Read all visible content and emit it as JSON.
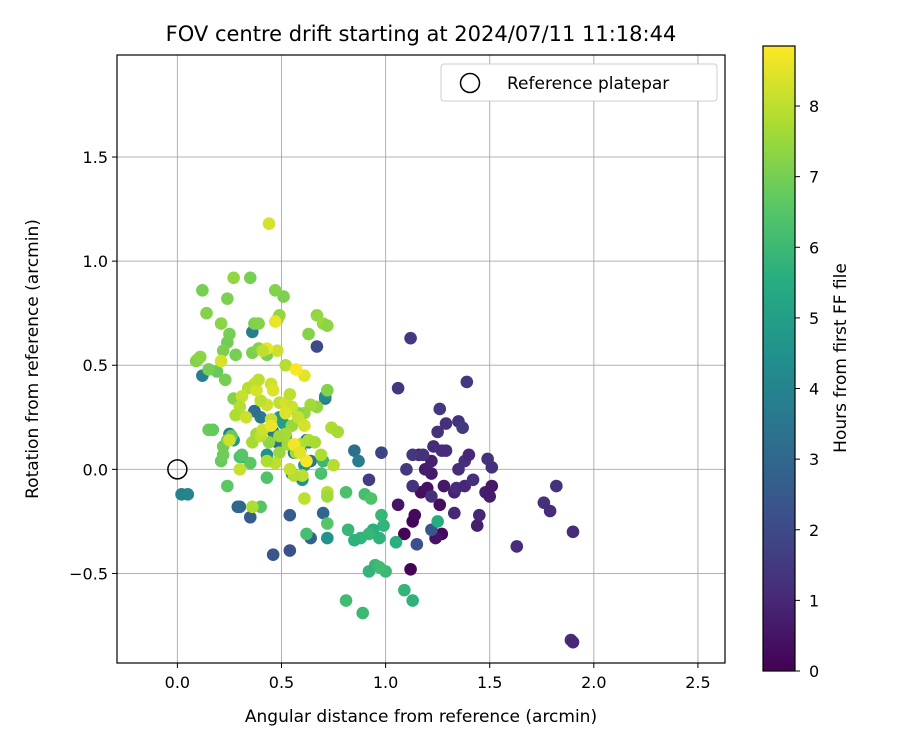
{
  "chart_data": {
    "type": "scatter",
    "title": "FOV centre drift starting at 2024/07/11 11:18:44",
    "xlabel": "Angular distance from reference (arcmin)",
    "ylabel": "Rotation from reference (arcmin)",
    "xlim": [
      -0.29,
      2.63
    ],
    "ylim": [
      -0.93,
      1.99
    ],
    "xticks": [
      "0.0",
      "0.5",
      "1.0",
      "1.5",
      "2.0",
      "2.5"
    ],
    "xtick_values": [
      0,
      0.5,
      1,
      1.5,
      2,
      2.5
    ],
    "yticks": [
      "−0.5",
      "0.0",
      "0.5",
      "1.0",
      "1.5"
    ],
    "ytick_values": [
      -0.5,
      0,
      0.5,
      1,
      1.5
    ],
    "grid": true,
    "legend_position": "top-right",
    "legend_label": "Reference platepar",
    "reference_point": {
      "x": 0.0,
      "y": 0.0
    },
    "colorbar": {
      "label": "Hours from first FF file",
      "range": [
        0,
        8.85
      ],
      "ticks": [
        "0",
        "1",
        "2",
        "3",
        "4",
        "5",
        "6",
        "7",
        "8"
      ],
      "tick_values": [
        0,
        1,
        2,
        3,
        4,
        5,
        6,
        7,
        8
      ],
      "colormap": "viridis"
    },
    "points": [
      {
        "x": 1.12,
        "y": -0.48,
        "h": 0.1
      },
      {
        "x": 1.09,
        "y": -0.31,
        "h": 0.1
      },
      {
        "x": 1.13,
        "y": -0.25,
        "h": 0.1
      },
      {
        "x": 1.14,
        "y": -0.22,
        "h": 0.2
      },
      {
        "x": 1.27,
        "y": -0.31,
        "h": 0.2
      },
      {
        "x": 1.26,
        "y": -0.17,
        "h": 0.3
      },
      {
        "x": 1.17,
        "y": -0.11,
        "h": 0.3
      },
      {
        "x": 1.2,
        "y": -0.09,
        "h": 0.4
      },
      {
        "x": 1.24,
        "y": -0.33,
        "h": 0.5
      },
      {
        "x": 1.06,
        "y": -0.17,
        "h": 0.5
      },
      {
        "x": 1.22,
        "y": -0.02,
        "h": 0.6
      },
      {
        "x": 1.28,
        "y": -0.08,
        "h": 0.6
      },
      {
        "x": 1.19,
        "y": 0.0,
        "h": 0.7
      },
      {
        "x": 1.22,
        "y": 0.04,
        "h": 0.8
      },
      {
        "x": 1.16,
        "y": 0.07,
        "h": 0.9
      },
      {
        "x": 1.33,
        "y": -0.11,
        "h": 0.9
      },
      {
        "x": 1.44,
        "y": -0.27,
        "h": 0.8
      },
      {
        "x": 1.48,
        "y": -0.11,
        "h": 0.7
      },
      {
        "x": 1.51,
        "y": -0.08,
        "h": 0.6
      },
      {
        "x": 1.5,
        "y": -0.13,
        "h": 0.7
      },
      {
        "x": 1.45,
        "y": -0.22,
        "h": 1.0
      },
      {
        "x": 1.33,
        "y": -0.21,
        "h": 1.0
      },
      {
        "x": 1.34,
        "y": -0.09,
        "h": 1.1
      },
      {
        "x": 1.38,
        "y": -0.08,
        "h": 1.0
      },
      {
        "x": 1.35,
        "y": 0.0,
        "h": 1.1
      },
      {
        "x": 1.38,
        "y": 0.04,
        "h": 1.2
      },
      {
        "x": 1.4,
        "y": 0.07,
        "h": 1.0
      },
      {
        "x": 1.42,
        "y": -0.05,
        "h": 1.2
      },
      {
        "x": 1.27,
        "y": 0.09,
        "h": 1.2
      },
      {
        "x": 1.29,
        "y": 0.09,
        "h": 1.1
      },
      {
        "x": 1.25,
        "y": 0.18,
        "h": 1.3
      },
      {
        "x": 1.23,
        "y": 0.11,
        "h": 1.1
      },
      {
        "x": 1.18,
        "y": 0.07,
        "h": 1.3
      },
      {
        "x": 1.13,
        "y": 0.07,
        "h": 1.4
      },
      {
        "x": 1.1,
        "y": 0.0,
        "h": 1.5
      },
      {
        "x": 1.13,
        "y": -0.08,
        "h": 1.3
      },
      {
        "x": 1.22,
        "y": -0.13,
        "h": 1.2
      },
      {
        "x": 1.26,
        "y": 0.29,
        "h": 1.4
      },
      {
        "x": 1.29,
        "y": 0.22,
        "h": 1.2
      },
      {
        "x": 1.35,
        "y": 0.23,
        "h": 1.3
      },
      {
        "x": 1.37,
        "y": 0.2,
        "h": 1.5
      },
      {
        "x": 1.39,
        "y": 0.42,
        "h": 1.4
      },
      {
        "x": 1.49,
        "y": 0.05,
        "h": 1.3
      },
      {
        "x": 1.51,
        "y": 0.01,
        "h": 1.2
      },
      {
        "x": 1.63,
        "y": -0.37,
        "h": 1.1
      },
      {
        "x": 1.76,
        "y": -0.16,
        "h": 1.2
      },
      {
        "x": 1.79,
        "y": -0.2,
        "h": 1.1
      },
      {
        "x": 1.82,
        "y": -0.08,
        "h": 1.3
      },
      {
        "x": 1.9,
        "y": -0.3,
        "h": 1.1
      },
      {
        "x": 1.89,
        "y": -0.82,
        "h": 1.2
      },
      {
        "x": 1.9,
        "y": -0.83,
        "h": 1.0
      },
      {
        "x": 1.06,
        "y": 0.39,
        "h": 1.4
      },
      {
        "x": 1.12,
        "y": 0.63,
        "h": 1.5
      },
      {
        "x": 0.98,
        "y": 0.08,
        "h": 1.8
      },
      {
        "x": 0.92,
        "y": -0.05,
        "h": 1.6
      },
      {
        "x": 1.15,
        "y": -0.36,
        "h": 2.2
      },
      {
        "x": 1.22,
        "y": -0.29,
        "h": 2.4
      },
      {
        "x": 0.67,
        "y": 0.59,
        "h": 2.0
      },
      {
        "x": 0.54,
        "y": -0.39,
        "h": 2.2
      },
      {
        "x": 0.46,
        "y": -0.41,
        "h": 2.4
      },
      {
        "x": 0.54,
        "y": -0.22,
        "h": 2.6
      },
      {
        "x": 0.35,
        "y": -0.23,
        "h": 2.6
      },
      {
        "x": 0.29,
        "y": -0.18,
        "h": 2.8
      },
      {
        "x": 0.3,
        "y": -0.18,
        "h": 3.0
      },
      {
        "x": 0.64,
        "y": -0.33,
        "h": 2.8
      },
      {
        "x": 0.7,
        "y": -0.21,
        "h": 2.9
      },
      {
        "x": 0.71,
        "y": 0.34,
        "h": 3.5
      },
      {
        "x": 0.64,
        "y": 0.04,
        "h": 3.5
      },
      {
        "x": 0.62,
        "y": 0.14,
        "h": 3.3
      },
      {
        "x": 0.59,
        "y": 0.09,
        "h": 3.2
      },
      {
        "x": 0.56,
        "y": 0.08,
        "h": 3.4
      },
      {
        "x": 0.52,
        "y": 0.16,
        "h": 3.1
      },
      {
        "x": 0.48,
        "y": 0.13,
        "h": 3.3
      },
      {
        "x": 0.46,
        "y": 0.18,
        "h": 3.6
      },
      {
        "x": 0.4,
        "y": 0.25,
        "h": 3.5
      },
      {
        "x": 0.37,
        "y": 0.28,
        "h": 3.2
      },
      {
        "x": 0.55,
        "y": -0.02,
        "h": 3.6
      },
      {
        "x": 0.63,
        "y": 0.13,
        "h": 3.8
      },
      {
        "x": 0.36,
        "y": 0.66,
        "h": 3.8
      },
      {
        "x": 0.25,
        "y": 0.17,
        "h": 3.9
      },
      {
        "x": 0.12,
        "y": 0.45,
        "h": 3.8
      },
      {
        "x": 0.02,
        "y": -0.12,
        "h": 3.9
      },
      {
        "x": 0.05,
        "y": -0.12,
        "h": 4.0
      },
      {
        "x": 0.85,
        "y": 0.09,
        "h": 3.3
      },
      {
        "x": 0.87,
        "y": 0.04,
        "h": 3.7
      },
      {
        "x": 0.72,
        "y": -0.33,
        "h": 4.5
      },
      {
        "x": 0.71,
        "y": 0.35,
        "h": 4.2
      },
      {
        "x": 0.43,
        "y": 0.07,
        "h": 4.4
      },
      {
        "x": 0.6,
        "y": -0.05,
        "h": 4.6
      },
      {
        "x": 0.61,
        "y": 0.02,
        "h": 4.5
      },
      {
        "x": 0.31,
        "y": 0.06,
        "h": 4.8
      },
      {
        "x": 0.27,
        "y": 0.14,
        "h": 4.6
      },
      {
        "x": 0.49,
        "y": 0.25,
        "h": 4.8
      },
      {
        "x": 0.51,
        "y": 0.22,
        "h": 5.0
      },
      {
        "x": 1.25,
        "y": -0.25,
        "h": 5.5
      },
      {
        "x": 1.13,
        "y": -0.63,
        "h": 5.7
      },
      {
        "x": 1.09,
        "y": -0.58,
        "h": 5.8
      },
      {
        "x": 1.05,
        "y": -0.35,
        "h": 5.6
      },
      {
        "x": 0.98,
        "y": -0.22,
        "h": 5.9
      },
      {
        "x": 0.99,
        "y": -0.27,
        "h": 5.8
      },
      {
        "x": 0.97,
        "y": -0.33,
        "h": 5.7
      },
      {
        "x": 0.94,
        "y": -0.29,
        "h": 5.6
      },
      {
        "x": 0.92,
        "y": -0.31,
        "h": 5.9
      },
      {
        "x": 0.88,
        "y": -0.33,
        "h": 5.8
      },
      {
        "x": 0.85,
        "y": -0.34,
        "h": 5.7
      },
      {
        "x": 0.82,
        "y": -0.29,
        "h": 5.9
      },
      {
        "x": 0.95,
        "y": -0.46,
        "h": 5.9
      },
      {
        "x": 1.0,
        "y": -0.49,
        "h": 6.0
      },
      {
        "x": 0.97,
        "y": -0.47,
        "h": 6.1
      },
      {
        "x": 0.92,
        "y": -0.49,
        "h": 5.8
      },
      {
        "x": 0.89,
        "y": -0.69,
        "h": 6.0
      },
      {
        "x": 0.81,
        "y": -0.63,
        "h": 6.1
      },
      {
        "x": 0.81,
        "y": -0.11,
        "h": 6.3
      },
      {
        "x": 0.9,
        "y": -0.12,
        "h": 6.2
      },
      {
        "x": 0.93,
        "y": -0.14,
        "h": 6.4
      },
      {
        "x": 0.72,
        "y": -0.26,
        "h": 6.5
      },
      {
        "x": 0.69,
        "y": -0.02,
        "h": 6.3
      },
      {
        "x": 0.7,
        "y": 0.04,
        "h": 6.0
      },
      {
        "x": 0.62,
        "y": -0.31,
        "h": 6.2
      },
      {
        "x": 0.43,
        "y": -0.04,
        "h": 6.4
      },
      {
        "x": 0.4,
        "y": -0.18,
        "h": 6.5
      },
      {
        "x": 0.35,
        "y": 0.03,
        "h": 6.6
      },
      {
        "x": 0.3,
        "y": 0.06,
        "h": 6.3
      },
      {
        "x": 0.31,
        "y": 0.07,
        "h": 6.5
      },
      {
        "x": 0.24,
        "y": -0.08,
        "h": 6.6
      },
      {
        "x": 0.21,
        "y": 0.04,
        "h": 6.8
      },
      {
        "x": 0.22,
        "y": 0.07,
        "h": 6.9
      },
      {
        "x": 0.17,
        "y": 0.19,
        "h": 6.7
      },
      {
        "x": 0.15,
        "y": 0.19,
        "h": 6.8
      },
      {
        "x": 0.22,
        "y": 0.11,
        "h": 6.9
      },
      {
        "x": 0.24,
        "y": 0.14,
        "h": 7.0
      },
      {
        "x": 0.26,
        "y": 0.16,
        "h": 6.8
      },
      {
        "x": 0.19,
        "y": 0.47,
        "h": 6.8
      },
      {
        "x": 0.23,
        "y": 0.43,
        "h": 7.0
      },
      {
        "x": 0.27,
        "y": 0.34,
        "h": 7.2
      },
      {
        "x": 0.28,
        "y": 0.55,
        "h": 7.0
      },
      {
        "x": 0.24,
        "y": 0.61,
        "h": 6.9
      },
      {
        "x": 0.22,
        "y": 0.57,
        "h": 7.1
      },
      {
        "x": 0.25,
        "y": 0.65,
        "h": 7.0
      },
      {
        "x": 0.36,
        "y": 0.56,
        "h": 7.1
      },
      {
        "x": 0.39,
        "y": 0.58,
        "h": 7.2
      },
      {
        "x": 0.43,
        "y": 0.55,
        "h": 7.0
      },
      {
        "x": 0.37,
        "y": 0.7,
        "h": 7.1
      },
      {
        "x": 0.39,
        "y": 0.7,
        "h": 7.2
      },
      {
        "x": 0.48,
        "y": 0.72,
        "h": 7.3
      },
      {
        "x": 0.49,
        "y": 0.74,
        "h": 7.4
      },
      {
        "x": 0.51,
        "y": 0.83,
        "h": 7.1
      },
      {
        "x": 0.47,
        "y": 0.86,
        "h": 7.2
      },
      {
        "x": 0.35,
        "y": 0.92,
        "h": 7.0
      },
      {
        "x": 0.27,
        "y": 0.92,
        "h": 7.4
      },
      {
        "x": 0.24,
        "y": 0.82,
        "h": 7.1
      },
      {
        "x": 0.21,
        "y": 0.7,
        "h": 7.3
      },
      {
        "x": 0.14,
        "y": 0.75,
        "h": 7.2
      },
      {
        "x": 0.12,
        "y": 0.86,
        "h": 7.0
      },
      {
        "x": 0.1,
        "y": 0.53,
        "h": 7.1
      },
      {
        "x": 0.09,
        "y": 0.52,
        "h": 7.2
      },
      {
        "x": 0.11,
        "y": 0.54,
        "h": 7.3
      },
      {
        "x": 0.15,
        "y": 0.48,
        "h": 7.0
      },
      {
        "x": 0.63,
        "y": 0.65,
        "h": 7.2
      },
      {
        "x": 0.67,
        "y": 0.74,
        "h": 7.4
      },
      {
        "x": 0.7,
        "y": 0.7,
        "h": 7.5
      },
      {
        "x": 0.72,
        "y": 0.69,
        "h": 7.3
      },
      {
        "x": 0.72,
        "y": 0.38,
        "h": 7.2
      },
      {
        "x": 0.67,
        "y": 0.3,
        "h": 7.4
      },
      {
        "x": 0.64,
        "y": 0.31,
        "h": 7.6
      },
      {
        "x": 0.61,
        "y": 0.27,
        "h": 7.5
      },
      {
        "x": 0.58,
        "y": 0.27,
        "h": 7.3
      },
      {
        "x": 0.55,
        "y": 0.21,
        "h": 7.5
      },
      {
        "x": 0.52,
        "y": 0.17,
        "h": 7.7
      },
      {
        "x": 0.49,
        "y": 0.16,
        "h": 7.6
      },
      {
        "x": 0.44,
        "y": 0.13,
        "h": 7.4
      },
      {
        "x": 0.38,
        "y": 0.17,
        "h": 7.6
      },
      {
        "x": 0.36,
        "y": 0.13,
        "h": 7.7
      },
      {
        "x": 0.36,
        "y": -0.18,
        "h": 7.8
      },
      {
        "x": 0.49,
        "y": 0.08,
        "h": 7.5
      },
      {
        "x": 0.53,
        "y": 0.12,
        "h": 7.6
      },
      {
        "x": 0.57,
        "y": 0.08,
        "h": 7.7
      },
      {
        "x": 0.59,
        "y": 0.12,
        "h": 7.9
      },
      {
        "x": 0.63,
        "y": 0.14,
        "h": 7.8
      },
      {
        "x": 0.66,
        "y": 0.13,
        "h": 7.7
      },
      {
        "x": 0.69,
        "y": 0.07,
        "h": 7.8
      },
      {
        "x": 0.72,
        "y": -0.11,
        "h": 7.9
      },
      {
        "x": 0.72,
        "y": -0.13,
        "h": 7.6
      },
      {
        "x": 0.74,
        "y": 0.2,
        "h": 7.8
      },
      {
        "x": 0.77,
        "y": 0.18,
        "h": 7.7
      },
      {
        "x": 0.75,
        "y": 0.02,
        "h": 7.9
      },
      {
        "x": 0.61,
        "y": -0.14,
        "h": 8.0
      },
      {
        "x": 0.6,
        "y": -0.03,
        "h": 8.0
      },
      {
        "x": 0.56,
        "y": -0.03,
        "h": 7.9
      },
      {
        "x": 0.54,
        "y": 0.0,
        "h": 8.1
      },
      {
        "x": 0.47,
        "y": 0.03,
        "h": 8.0
      },
      {
        "x": 0.43,
        "y": 0.04,
        "h": 7.8
      },
      {
        "x": 0.4,
        "y": 0.16,
        "h": 8.0
      },
      {
        "x": 0.41,
        "y": 0.19,
        "h": 8.2
      },
      {
        "x": 0.45,
        "y": 0.24,
        "h": 8.1
      },
      {
        "x": 0.49,
        "y": 0.32,
        "h": 8.0
      },
      {
        "x": 0.52,
        "y": 0.32,
        "h": 8.3
      },
      {
        "x": 0.55,
        "y": 0.3,
        "h": 8.2
      },
      {
        "x": 0.58,
        "y": 0.25,
        "h": 8.1
      },
      {
        "x": 0.61,
        "y": 0.21,
        "h": 8.3
      },
      {
        "x": 0.54,
        "y": 0.36,
        "h": 8.0
      },
      {
        "x": 0.52,
        "y": 0.5,
        "h": 7.9
      },
      {
        "x": 0.45,
        "y": 0.41,
        "h": 8.2
      },
      {
        "x": 0.46,
        "y": 0.38,
        "h": 8.4
      },
      {
        "x": 0.43,
        "y": 0.31,
        "h": 8.2
      },
      {
        "x": 0.4,
        "y": 0.33,
        "h": 8.0
      },
      {
        "x": 0.37,
        "y": 0.41,
        "h": 8.1
      },
      {
        "x": 0.34,
        "y": 0.39,
        "h": 7.9
      },
      {
        "x": 0.31,
        "y": 0.35,
        "h": 8.1
      },
      {
        "x": 0.3,
        "y": 0.3,
        "h": 7.9
      },
      {
        "x": 0.28,
        "y": 0.26,
        "h": 7.8
      },
      {
        "x": 0.33,
        "y": 0.25,
        "h": 8.2
      },
      {
        "x": 0.38,
        "y": 0.38,
        "h": 8.3
      },
      {
        "x": 0.39,
        "y": 0.43,
        "h": 8.0
      },
      {
        "x": 0.48,
        "y": 0.57,
        "h": 8.2
      },
      {
        "x": 0.43,
        "y": 0.58,
        "h": 8.6
      },
      {
        "x": 0.41,
        "y": 0.57,
        "h": 8.0
      },
      {
        "x": 0.21,
        "y": 0.52,
        "h": 8.3
      },
      {
        "x": 0.25,
        "y": 0.14,
        "h": 8.2
      },
      {
        "x": 0.3,
        "y": 0.0,
        "h": 8.1
      },
      {
        "x": 0.44,
        "y": 1.18,
        "h": 8.3
      },
      {
        "x": 0.47,
        "y": 0.71,
        "h": 8.6
      },
      {
        "x": 0.61,
        "y": 0.45,
        "h": 8.5
      },
      {
        "x": 0.57,
        "y": 0.48,
        "h": 8.8
      },
      {
        "x": 0.52,
        "y": 0.27,
        "h": 8.4
      },
      {
        "x": 0.45,
        "y": 0.21,
        "h": 8.6
      },
      {
        "x": 0.56,
        "y": 0.12,
        "h": 8.7
      },
      {
        "x": 0.62,
        "y": 0.04,
        "h": 8.8
      },
      {
        "x": 0.59,
        "y": 0.08,
        "h": 8.5
      }
    ]
  }
}
